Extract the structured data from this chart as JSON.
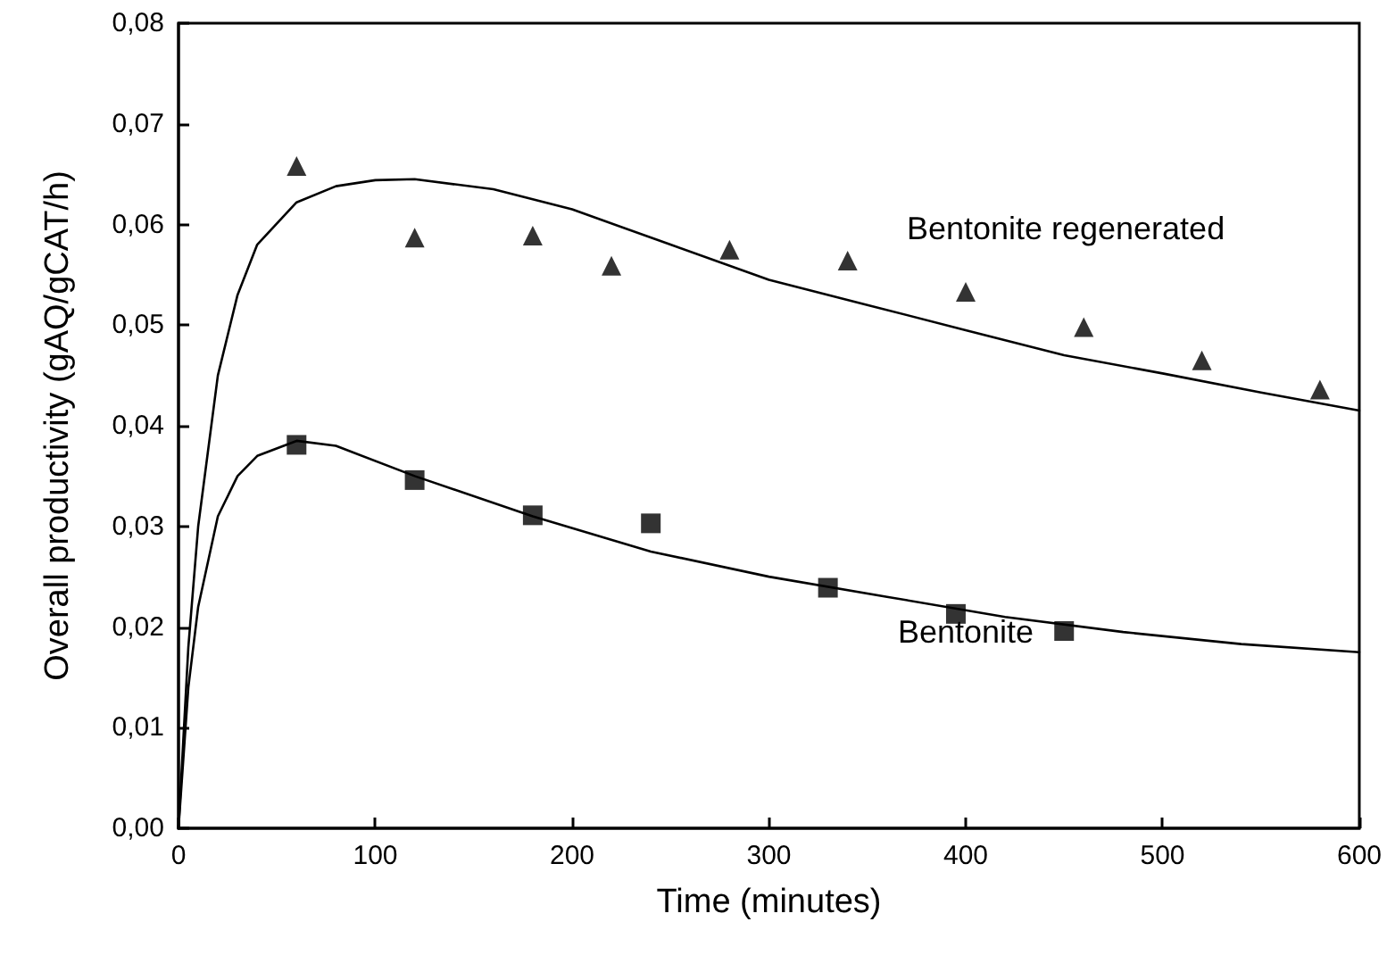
{
  "chart_data": {
    "type": "scatter",
    "xlabel": "Time (minutes)",
    "ylabel": "Overall productivity (gAQ/gCAT/h)",
    "xlim": [
      0,
      600
    ],
    "xticks": [
      0,
      100,
      200,
      300,
      400,
      500,
      600
    ],
    "ylim": [
      0,
      0.08
    ],
    "yticks": [
      {
        "value": 0,
        "label": "0,00"
      },
      {
        "value": 0.01,
        "label": "0,01"
      },
      {
        "value": 0.02,
        "label": "0,02"
      },
      {
        "value": 0.03,
        "label": "0,03"
      },
      {
        "value": 0.04,
        "label": "0,04"
      },
      {
        "value": 0.05,
        "label": "0,05"
      },
      {
        "value": 0.06,
        "label": "0,06"
      },
      {
        "value": 0.07,
        "label": "0,07"
      },
      {
        "value": 0.08,
        "label": "0,08"
      }
    ],
    "grid": false,
    "series": [
      {
        "marker": "triangle",
        "color": "#000000",
        "x": [
          60,
          120,
          180,
          220,
          280,
          340,
          400,
          460,
          520,
          580
        ],
        "values": [
          0.0658,
          0.0587,
          0.0589,
          0.0559,
          0.0575,
          0.0564,
          0.0533,
          0.0498,
          0.0465,
          0.0436
        ]
      },
      {
        "marker": "square",
        "color": "#000000",
        "x": [
          60,
          120,
          180,
          240,
          330,
          395,
          450
        ],
        "values": [
          0.0381,
          0.0346,
          0.0311,
          0.0303,
          0.0239,
          0.0213,
          0.0196
        ]
      },
      {
        "type": "line",
        "marker": "none",
        "line_style": "solid",
        "color": "#000000",
        "x": [
          0,
          5,
          10,
          20,
          30,
          40,
          60,
          80,
          100,
          120,
          160,
          200,
          250,
          300,
          350,
          400,
          450,
          500,
          550,
          600
        ],
        "values": [
          0,
          0.018,
          0.03,
          0.045,
          0.053,
          0.058,
          0.0622,
          0.0638,
          0.0644,
          0.0645,
          0.0635,
          0.0615,
          0.058,
          0.0545,
          0.052,
          0.0495,
          0.047,
          0.0452,
          0.0433,
          0.0415
        ]
      },
      {
        "type": "line",
        "marker": "none",
        "line_style": "solid",
        "color": "#000000",
        "x": [
          0,
          5,
          10,
          20,
          30,
          40,
          60,
          80,
          120,
          180,
          240,
          300,
          360,
          420,
          480,
          540,
          600
        ],
        "values": [
          0,
          0.014,
          0.022,
          0.031,
          0.035,
          0.037,
          0.0385,
          0.038,
          0.035,
          0.031,
          0.0275,
          0.025,
          0.023,
          0.021,
          0.0195,
          0.0183,
          0.0175
        ]
      }
    ],
    "annotations": [
      "Bentonite regenerated",
      "Bentonite"
    ]
  }
}
